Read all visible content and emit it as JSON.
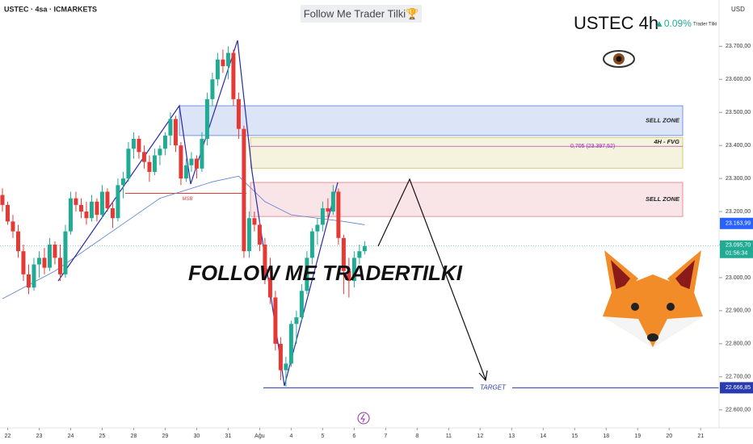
{
  "chart_data": {
    "type": "candlestick",
    "title": "USTEC · 4sa · ICMARKETS",
    "banner": "Follow Me Trader Tilki🏆",
    "symbol": "USTEC 4h",
    "change": "▲0.09%",
    "author": "Trader Tilki",
    "currency": "USD",
    "watermark": "FOLLOW ME TRADERTILKI",
    "up_color": "#22ab94",
    "down_color": "#e53935",
    "ohlc": [
      [
        23250,
        23270,
        23200,
        23220
      ],
      [
        23220,
        23230,
        23160,
        23170
      ],
      [
        23170,
        23190,
        23120,
        23140
      ],
      [
        23140,
        23160,
        23060,
        23080
      ],
      [
        23080,
        23100,
        22990,
        23010
      ],
      [
        23010,
        23040,
        22950,
        22970
      ],
      [
        22970,
        23060,
        22960,
        23040
      ],
      [
        23040,
        23080,
        23000,
        23060
      ],
      [
        23060,
        23090,
        23010,
        23030
      ],
      [
        23030,
        23120,
        23020,
        23100
      ],
      [
        23100,
        23110,
        23040,
        23060
      ],
      [
        23060,
        23100,
        22990,
        23010
      ],
      [
        23010,
        23160,
        23000,
        23140
      ],
      [
        23140,
        23260,
        23130,
        23240
      ],
      [
        23240,
        23260,
        23200,
        23220
      ],
      [
        23220,
        23240,
        23180,
        23200
      ],
      [
        23200,
        23230,
        23160,
        23180
      ],
      [
        23180,
        23250,
        23170,
        23230
      ],
      [
        23230,
        23240,
        23170,
        23190
      ],
      [
        23190,
        23280,
        23180,
        23260
      ],
      [
        23260,
        23270,
        23200,
        23210
      ],
      [
        23210,
        23230,
        23150,
        23180
      ],
      [
        23180,
        23300,
        23170,
        23280
      ],
      [
        23280,
        23320,
        23240,
        23300
      ],
      [
        23300,
        23410,
        23290,
        23390
      ],
      [
        23390,
        23440,
        23360,
        23420
      ],
      [
        23420,
        23430,
        23360,
        23380
      ],
      [
        23380,
        23400,
        23330,
        23350
      ],
      [
        23350,
        23370,
        23290,
        23320
      ],
      [
        23320,
        23390,
        23310,
        23370
      ],
      [
        23370,
        23400,
        23340,
        23390
      ],
      [
        23390,
        23440,
        23370,
        23430
      ],
      [
        23430,
        23500,
        23400,
        23480
      ],
      [
        23480,
        23490,
        23380,
        23400
      ],
      [
        23400,
        23410,
        23280,
        23300
      ],
      [
        23300,
        23360,
        23290,
        23340
      ],
      [
        23340,
        23380,
        23320,
        23360
      ],
      [
        23360,
        23370,
        23300,
        23330
      ],
      [
        23330,
        23440,
        23320,
        23420
      ],
      [
        23420,
        23560,
        23400,
        23540
      ],
      [
        23540,
        23620,
        23520,
        23600
      ],
      [
        23600,
        23680,
        23580,
        23660
      ],
      [
        23660,
        23690,
        23620,
        23640
      ],
      [
        23640,
        23700,
        23600,
        23680
      ],
      [
        23680,
        23690,
        23520,
        23540
      ],
      [
        23540,
        23560,
        23420,
        23450
      ],
      [
        23450,
        23460,
        23060,
        23080
      ],
      [
        23080,
        23200,
        23060,
        23180
      ],
      [
        23180,
        23200,
        23140,
        23160
      ],
      [
        23160,
        23170,
        23080,
        23100
      ],
      [
        23100,
        23120,
        22980,
        23000
      ],
      [
        23000,
        23060,
        22920,
        22940
      ],
      [
        22940,
        22960,
        22780,
        22800
      ],
      [
        22800,
        22820,
        22690,
        22720
      ],
      [
        22720,
        22760,
        22670,
        22740
      ],
      [
        22740,
        22870,
        22730,
        22860
      ],
      [
        22860,
        22900,
        22800,
        22880
      ],
      [
        22880,
        22980,
        22870,
        22960
      ],
      [
        22960,
        23080,
        22950,
        23060
      ],
      [
        23060,
        23150,
        23040,
        23140
      ],
      [
        23140,
        23180,
        23100,
        23160
      ],
      [
        23160,
        23230,
        23140,
        23210
      ],
      [
        23210,
        23240,
        23170,
        23200
      ],
      [
        23200,
        23280,
        23190,
        23260
      ],
      [
        23260,
        23270,
        23100,
        23120
      ],
      [
        23120,
        23130,
        22950,
        23020
      ],
      [
        23020,
        23060,
        22940,
        22990
      ],
      [
        22990,
        23080,
        22970,
        23060
      ],
      [
        23060,
        23100,
        23040,
        23080
      ],
      [
        23080,
        23110,
        23070,
        23095.7
      ]
    ],
    "ma": {
      "color": "#5b7fd6",
      "x": [
        0,
        10,
        20,
        30,
        40,
        45,
        50,
        55,
        60,
        65,
        69
      ],
      "values": [
        22936,
        23020,
        23130,
        23240,
        23290,
        23307,
        23230,
        23190,
        23180,
        23170,
        23160
      ]
    },
    "zones": [
      {
        "label": "SELL ZONE",
        "top": 23520,
        "bottom": 23430,
        "color": "#3f6fd8"
      },
      {
        "label": "4H - FVG",
        "top": 23424,
        "bottom": 23331,
        "color": "#c9b84a"
      },
      {
        "label": "SELL ZONE",
        "top": 23288,
        "bottom": 23185,
        "color": "#e06a78"
      }
    ],
    "fib": {
      "label": "0,705 (23.397,52)",
      "value": 23397.52,
      "color": "#9c27b0"
    },
    "msb": {
      "label": "MSB",
      "value": 23255,
      "color": "#e53935"
    },
    "target": {
      "label": "TARGET",
      "value": 22666.85,
      "price_label": "22.666,85",
      "color": "#2a3ab0"
    },
    "level": {
      "value": 23163.99,
      "label": "23.163,99",
      "color": "#2962ff"
    },
    "last": {
      "value": 23095.7,
      "label": "23.095,70",
      "countdown": "01:56:34",
      "color": "#22ab94"
    },
    "ylim": [
      22570,
      23840
    ],
    "yticks": [
      {
        "value": 22600,
        "label": "22.600,00"
      },
      {
        "value": 22700,
        "label": "22.700,00"
      },
      {
        "value": 22800,
        "label": "22.800,00"
      },
      {
        "value": 22900,
        "label": "22.900,00"
      },
      {
        "value": 23000,
        "label": "23.000,00"
      },
      {
        "value": 23100,
        "label": "23.100,00"
      },
      {
        "value": 23200,
        "label": "23.200,00"
      },
      {
        "value": 23300,
        "label": "23.300,00"
      },
      {
        "value": 23400,
        "label": "23.400,00"
      },
      {
        "value": 23500,
        "label": "23.500,00"
      },
      {
        "value": 23600,
        "label": "23.600,00"
      },
      {
        "value": 23700,
        "label": "23.700,00"
      }
    ],
    "xlim": [
      -0.46,
      136.5
    ],
    "xticks": [
      {
        "value": 1,
        "label": "22"
      },
      {
        "value": 7,
        "label": "23"
      },
      {
        "value": 13,
        "label": "24"
      },
      {
        "value": 19,
        "label": "25"
      },
      {
        "value": 25,
        "label": "28"
      },
      {
        "value": 31,
        "label": "29"
      },
      {
        "value": 37,
        "label": "30"
      },
      {
        "value": 43,
        "label": "31"
      },
      {
        "value": 49,
        "label": "Ağu"
      },
      {
        "value": 55,
        "label": "4"
      },
      {
        "value": 61,
        "label": "5"
      },
      {
        "value": 67,
        "label": "6"
      },
      {
        "value": 73,
        "label": "7"
      },
      {
        "value": 79,
        "label": "8"
      },
      {
        "value": 85,
        "label": "11"
      },
      {
        "value": 91,
        "label": "12"
      },
      {
        "value": 97,
        "label": "13"
      },
      {
        "value": 103,
        "label": "14"
      },
      {
        "value": 109,
        "label": "15"
      },
      {
        "value": 115,
        "label": "18"
      },
      {
        "value": 121,
        "label": "19"
      },
      {
        "value": 127,
        "label": "20"
      },
      {
        "value": 133,
        "label": "21"
      }
    ]
  }
}
